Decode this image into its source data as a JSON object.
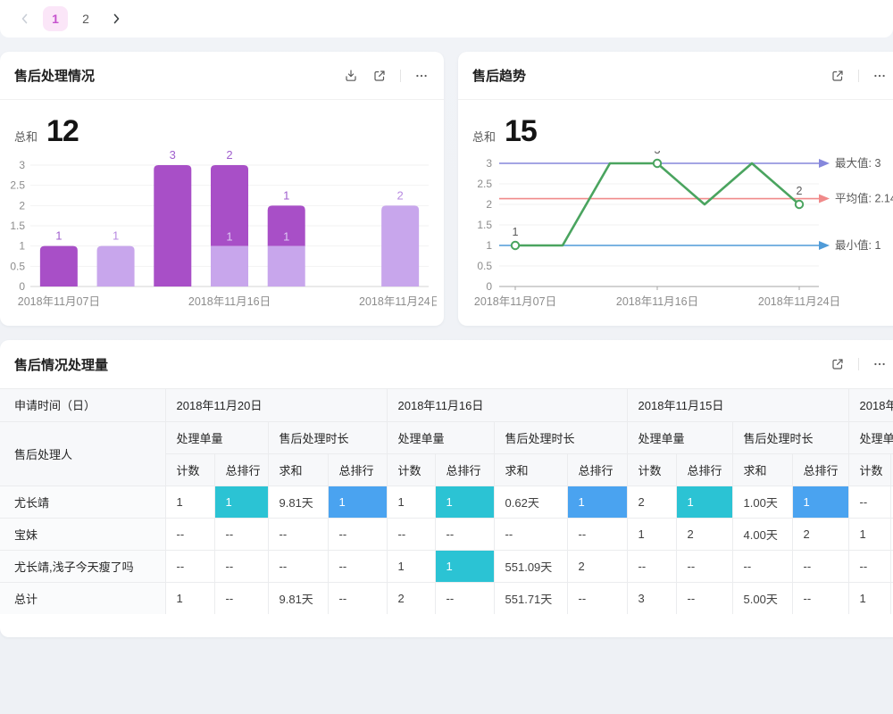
{
  "pagination": {
    "prev_icon": "chevron-left",
    "next_icon": "chevron-right",
    "pages": [
      "1",
      "2"
    ],
    "active_page": "1",
    "active_bg": "#fbe6f8",
    "active_color": "#c653ce"
  },
  "bar_card": {
    "title": "售后处理情况",
    "icons": [
      "download-icon",
      "open-in-new-icon",
      "more-icon"
    ],
    "summary_label": "总和",
    "summary_value": "12"
  },
  "line_card": {
    "title": "售后趋势",
    "icons": [
      "open-in-new-icon",
      "more-icon"
    ],
    "summary_label": "总和",
    "summary_value": "15"
  },
  "table_card": {
    "title": "售后情况处理量",
    "icons": [
      "open-in-new-icon",
      "more-icon"
    ]
  },
  "chart_data": [
    {
      "type": "bar",
      "stacked": true,
      "title": "售后处理情况",
      "ylim": [
        0,
        3
      ],
      "yticks": [
        0,
        0.5,
        1,
        1.5,
        2,
        2.5,
        3
      ],
      "series_colors": {
        "dark": "#a84fc7",
        "light": "#c8a6ec"
      },
      "label_colors": {
        "dark": "#a05fce",
        "light": "#b78ae0",
        "inner": "#ddc9f3"
      },
      "bars": [
        {
          "dark": 1,
          "light": 0,
          "top_label": "1"
        },
        {
          "dark": 0,
          "light": 1,
          "top_label": "1"
        },
        {
          "dark": 3,
          "light": 0,
          "top_label": "3"
        },
        {
          "dark": 2,
          "light": 1,
          "top_label": "2",
          "inner_label": "1"
        },
        {
          "dark": 1,
          "light": 1,
          "top_label": "1",
          "inner_label": "1"
        },
        {
          "dark": 0,
          "light": 0
        },
        {
          "dark": 0,
          "light": 2,
          "top_label": "2"
        }
      ],
      "x_ticks": [
        {
          "index": 0,
          "label": "2018年11月07日"
        },
        {
          "index": 3,
          "label": "2018年11月16日"
        },
        {
          "index": 6,
          "label": "2018年11月24日"
        }
      ]
    },
    {
      "type": "line",
      "title": "售后趋势",
      "values": [
        1,
        1,
        3,
        3,
        2,
        3,
        2
      ],
      "ylim": [
        0,
        3
      ],
      "yticks": [
        0,
        0.5,
        1,
        1.5,
        2,
        2.5,
        3
      ],
      "line_color": "#4aa45f",
      "markers": [
        {
          "index": 0,
          "label": "1"
        },
        {
          "index": 3,
          "label": "3"
        },
        {
          "index": 6,
          "label": "2"
        }
      ],
      "x_ticks": [
        {
          "index": 0,
          "label": "2018年11月07日"
        },
        {
          "index": 3,
          "label": "2018年11月16日"
        },
        {
          "index": 6,
          "label": "2018年11月24日"
        }
      ],
      "reference_lines": [
        {
          "value": 3,
          "color": "#8587dc",
          "label": "最大值: 3"
        },
        {
          "value": 2.14,
          "color": "#f08a8a",
          "label": "平均值: 2.14"
        },
        {
          "value": 1,
          "color": "#4f9bd8",
          "label": "最小值: 1"
        }
      ]
    }
  ],
  "table": {
    "corner_top": "申请时间（日）",
    "corner_bottom": "售后处理人",
    "groups": [
      {
        "date": "2018年11月20日",
        "metrics": [
          {
            "name": "处理单量",
            "subs": [
              "计数",
              "总排行"
            ]
          },
          {
            "name": "售后处理时长",
            "subs": [
              "求和",
              "总排行"
            ]
          }
        ]
      },
      {
        "date": "2018年11月16日",
        "metrics": [
          {
            "name": "处理单量",
            "subs": [
              "计数",
              "总排行"
            ]
          },
          {
            "name": "售后处理时长",
            "subs": [
              "求和",
              "总排行"
            ]
          }
        ]
      },
      {
        "date": "2018年11月15日",
        "metrics": [
          {
            "name": "处理单量",
            "subs": [
              "计数",
              "总排行"
            ]
          },
          {
            "name": "售后处理时长",
            "subs": [
              "求和",
              "总排行"
            ]
          }
        ]
      },
      {
        "date": "2018年",
        "metrics": [
          {
            "name": "处理单量",
            "subs": [
              "计数",
              ""
            ]
          }
        ]
      }
    ],
    "rows": [
      {
        "name": "尤长靖",
        "cells": [
          {
            "v": "1"
          },
          {
            "v": "1",
            "hl": "teal"
          },
          {
            "v": "9.81天"
          },
          {
            "v": "1",
            "hl": "blue"
          },
          {
            "v": "1"
          },
          {
            "v": "1",
            "hl": "teal"
          },
          {
            "v": "0.62天"
          },
          {
            "v": "1",
            "hl": "blue"
          },
          {
            "v": "2"
          },
          {
            "v": "1",
            "hl": "teal"
          },
          {
            "v": "1.00天"
          },
          {
            "v": "1",
            "hl": "blue"
          },
          {
            "v": "--"
          }
        ]
      },
      {
        "name": "宝妹",
        "cells": [
          {
            "v": "--"
          },
          {
            "v": "--"
          },
          {
            "v": "--"
          },
          {
            "v": "--"
          },
          {
            "v": "--"
          },
          {
            "v": "--"
          },
          {
            "v": "--"
          },
          {
            "v": "--"
          },
          {
            "v": "1"
          },
          {
            "v": "2"
          },
          {
            "v": "4.00天"
          },
          {
            "v": "2"
          },
          {
            "v": "1"
          }
        ]
      },
      {
        "name": "尤长靖,浅子今天瘦了吗",
        "cells": [
          {
            "v": "--"
          },
          {
            "v": "--"
          },
          {
            "v": "--"
          },
          {
            "v": "--"
          },
          {
            "v": "1"
          },
          {
            "v": "1",
            "hl": "teal"
          },
          {
            "v": "551.09天"
          },
          {
            "v": "2"
          },
          {
            "v": "--"
          },
          {
            "v": "--"
          },
          {
            "v": "--"
          },
          {
            "v": "--"
          },
          {
            "v": "--"
          }
        ]
      },
      {
        "name": "总计",
        "cells": [
          {
            "v": "1"
          },
          {
            "v": "--"
          },
          {
            "v": "9.81天"
          },
          {
            "v": "--"
          },
          {
            "v": "2"
          },
          {
            "v": "--"
          },
          {
            "v": "551.71天"
          },
          {
            "v": "--"
          },
          {
            "v": "3"
          },
          {
            "v": "--"
          },
          {
            "v": "5.00天"
          },
          {
            "v": "--"
          },
          {
            "v": "1"
          }
        ]
      }
    ],
    "highlight_colors": {
      "teal": "#2bc3d4",
      "blue": "#4aa3f0"
    }
  }
}
